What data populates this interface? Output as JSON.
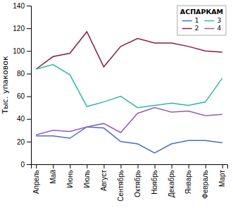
{
  "chart_data": {
    "type": "line",
    "categories": [
      "Апрель",
      "Май",
      "Июнь",
      "Июль",
      "Август",
      "Сентябрь",
      "Октябрь",
      "Ноябрь",
      "Декабрь",
      "Январь",
      "Февраль",
      "Март"
    ],
    "series": [
      {
        "name": "1",
        "color": "#4472c4",
        "values": [
          25,
          25,
          23,
          33,
          32,
          20,
          18,
          10,
          18,
          21,
          21,
          19
        ]
      },
      {
        "name": "2",
        "color": "#8b1a4a",
        "values": [
          84,
          95,
          98,
          117,
          86,
          104,
          111,
          107,
          107,
          104,
          100,
          99
        ]
      },
      {
        "name": "3",
        "color": "#2eb8aa",
        "values": [
          84,
          88,
          79,
          51,
          55,
          60,
          50,
          52,
          54,
          52,
          55,
          76
        ]
      },
      {
        "name": "4",
        "color": "#9b59b6",
        "values": [
          26,
          30,
          29,
          33,
          36,
          28,
          45,
          50,
          46,
          47,
          43,
          44
        ]
      }
    ],
    "ylabel": "Тыс. упаковок",
    "legend_title": "АСПАРКАМ",
    "legend": "upper right",
    "ylim": [
      0,
      140
    ],
    "yticks": [
      0,
      20,
      40,
      60,
      80,
      100,
      120,
      140
    ],
    "grid": false
  }
}
